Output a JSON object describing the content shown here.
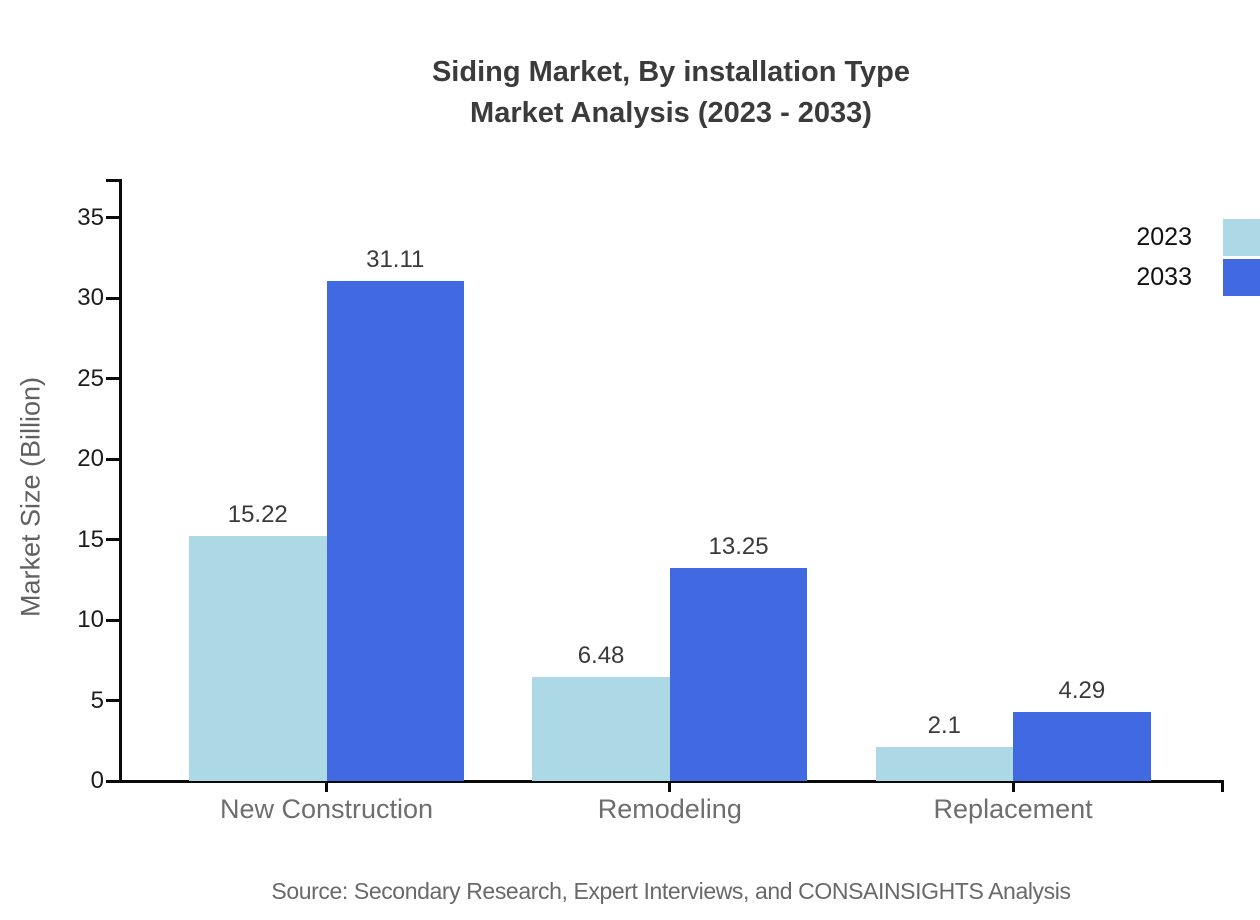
{
  "title": {
    "line1": "Siding Market, By installation Type",
    "line2": "Market Analysis (2023 - 2033)"
  },
  "y_axis": {
    "label": "Market Size (Billion)",
    "ticks": [
      0,
      5,
      10,
      15,
      20,
      25,
      30,
      35
    ]
  },
  "legend": {
    "position": "top-right",
    "items": [
      {
        "label": "2023",
        "color": "#add8e6"
      },
      {
        "label": "2033",
        "color": "#4169e1"
      }
    ]
  },
  "source": "Source: Secondary Research, Expert Interviews, and CONSAINSIGHTS Analysis",
  "chart_data": {
    "type": "bar",
    "title": "Siding Market, By installation Type Market Analysis (2023 - 2033)",
    "categories": [
      "New Construction",
      "Remodeling",
      "Replacement"
    ],
    "series": [
      {
        "name": "2023",
        "color": "#add8e6",
        "values": [
          15.22,
          6.48,
          2.1
        ]
      },
      {
        "name": "2033",
        "color": "#4169e1",
        "values": [
          31.11,
          13.25,
          4.29
        ]
      }
    ],
    "xlabel": "",
    "ylabel": "Market Size (Billion)",
    "ylim": [
      0,
      37.5
    ],
    "yticks": [
      0,
      5,
      10,
      15,
      20,
      25,
      30,
      35
    ],
    "grid": false,
    "legend_position": "top-right",
    "value_labels": true
  }
}
